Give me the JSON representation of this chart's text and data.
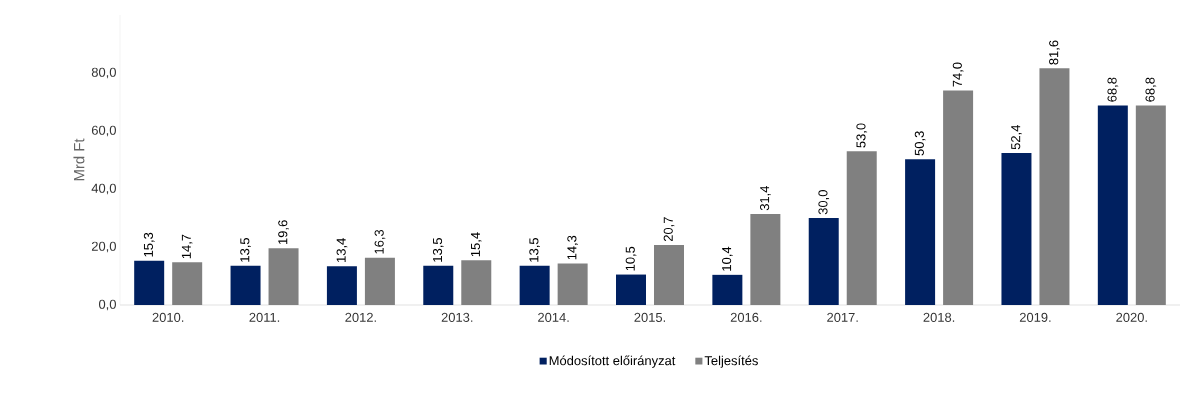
{
  "chart_data": {
    "type": "bar",
    "ylabel": "Mrd Ft",
    "categories": [
      "2010.",
      "2011.",
      "2012.",
      "2013.",
      "2014.",
      "2015.",
      "2016.",
      "2017.",
      "2018.",
      "2019.",
      "2020."
    ],
    "series": [
      {
        "name": "Módosított előirányzat",
        "color": "#002060",
        "values": [
          15.3,
          13.5,
          13.4,
          13.5,
          13.5,
          10.5,
          10.4,
          30.0,
          50.3,
          52.4,
          68.8
        ],
        "value_labels": [
          "15,3",
          "13,5",
          "13,4",
          "13,5",
          "13,5",
          "10,5",
          "10,4",
          "30,0",
          "50,3",
          "52,4",
          "68,8"
        ]
      },
      {
        "name": "Teljesítés",
        "color": "#808080",
        "values": [
          14.7,
          19.6,
          16.3,
          15.4,
          14.3,
          20.7,
          31.4,
          53.0,
          74.0,
          81.6,
          68.8
        ],
        "value_labels": [
          "14,7",
          "19,6",
          "16,3",
          "15,4",
          "14,3",
          "20,7",
          "31,4",
          "53,0",
          "74,0",
          "81,6",
          "68,8"
        ]
      }
    ],
    "ylim": [
      0,
      100
    ],
    "yticks": [
      {
        "value": 0,
        "label": "0,0"
      },
      {
        "value": 20,
        "label": "20,0"
      },
      {
        "value": 40,
        "label": "40,0"
      },
      {
        "value": 60,
        "label": "60,0"
      },
      {
        "value": 80,
        "label": "80,0"
      }
    ],
    "grid": false,
    "legend": "bottom"
  }
}
